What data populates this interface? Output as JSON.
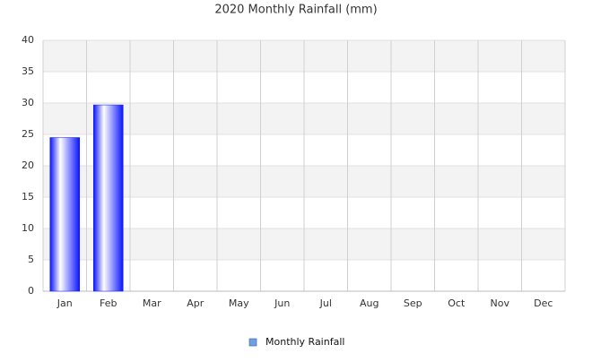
{
  "chart_data": {
    "type": "bar",
    "title": "2020 Monthly Rainfall (mm)",
    "categories": [
      "Jan",
      "Feb",
      "Mar",
      "Apr",
      "May",
      "Jun",
      "Jul",
      "Aug",
      "Sep",
      "Oct",
      "Nov",
      "Dec"
    ],
    "series": [
      {
        "name": "Monthly Rainfall",
        "color": "#0a14ff",
        "values": [
          24.5,
          29.7,
          null,
          null,
          null,
          null,
          null,
          null,
          null,
          null,
          null,
          null
        ]
      }
    ],
    "ylim": [
      0,
      40
    ],
    "yticks": [
      0,
      5,
      10,
      15,
      20,
      25,
      30,
      35,
      40
    ],
    "grid": true,
    "legend": "bottom"
  }
}
